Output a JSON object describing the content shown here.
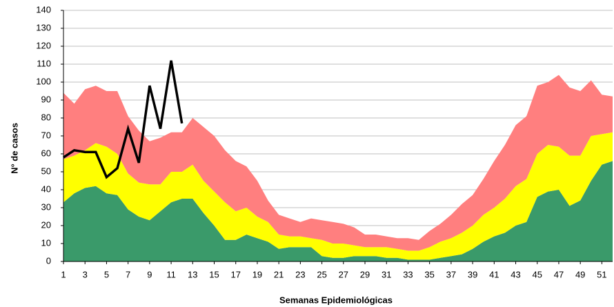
{
  "chart_data": {
    "type": "area",
    "stacked": true,
    "x_label": "Semanas Epidemiológicas",
    "y_label": "N° de casos",
    "x": [
      1,
      2,
      3,
      4,
      5,
      6,
      7,
      8,
      9,
      10,
      11,
      12,
      13,
      14,
      15,
      16,
      17,
      18,
      19,
      20,
      21,
      22,
      23,
      24,
      25,
      26,
      27,
      28,
      29,
      30,
      31,
      32,
      33,
      34,
      35,
      36,
      37,
      38,
      39,
      40,
      41,
      42,
      43,
      44,
      45,
      46,
      47,
      48,
      49,
      50,
      51,
      52
    ],
    "xlim": [
      1,
      52
    ],
    "xticks": [
      1,
      3,
      5,
      7,
      9,
      11,
      13,
      15,
      17,
      19,
      21,
      23,
      25,
      27,
      29,
      31,
      33,
      35,
      37,
      39,
      41,
      43,
      45,
      47,
      49,
      51
    ],
    "ylim": [
      0,
      140
    ],
    "yticks": [
      0,
      10,
      20,
      30,
      40,
      50,
      60,
      70,
      80,
      90,
      100,
      110,
      120,
      130,
      140
    ],
    "grid": true,
    "series": [
      {
        "type": "area",
        "color": "#3a9a6a",
        "values": [
          33,
          38,
          41,
          42,
          38,
          37,
          29,
          25,
          23,
          28,
          33,
          35,
          35,
          27,
          20,
          12,
          12,
          15,
          13,
          11,
          7,
          8,
          8,
          8,
          3,
          2,
          2,
          3,
          3,
          3,
          2,
          2,
          1,
          1,
          1,
          2,
          3,
          4,
          7,
          11,
          14,
          16,
          20,
          22,
          36,
          39,
          40,
          31,
          34,
          45,
          54,
          56
        ]
      },
      {
        "type": "area",
        "color": "#ffff00",
        "values": [
          24,
          21,
          21,
          24,
          26,
          23,
          20,
          19,
          20,
          15,
          17,
          15,
          19,
          18,
          19,
          21,
          16,
          15,
          12,
          11,
          8,
          6,
          6,
          5,
          9,
          8,
          8,
          6,
          5,
          5,
          6,
          5,
          5,
          5,
          7,
          9,
          10,
          12,
          13,
          15,
          16,
          19,
          22,
          24,
          24,
          26,
          24,
          28,
          25,
          25,
          17,
          16
        ]
      },
      {
        "type": "area",
        "color": "#ff7f7f",
        "values": [
          37,
          29,
          34,
          32,
          31,
          35,
          32,
          29,
          24,
          26,
          22,
          22,
          26,
          30,
          31,
          29,
          28,
          23,
          20,
          12,
          11,
          10,
          8,
          11,
          11,
          12,
          11,
          10,
          7,
          7,
          6,
          6,
          7,
          6,
          9,
          10,
          13,
          16,
          17,
          20,
          26,
          30,
          34,
          35,
          38,
          35,
          40,
          38,
          36,
          31,
          22,
          20
        ]
      },
      {
        "type": "line",
        "color": "#000000",
        "values": [
          58,
          62,
          61,
          61,
          47,
          52,
          74,
          55,
          98,
          74,
          112,
          77,
          null,
          null,
          null,
          null,
          null,
          null,
          null,
          null,
          null,
          null,
          null,
          null,
          null,
          null,
          null,
          null,
          null,
          null,
          null,
          null,
          null,
          null,
          null,
          null,
          null,
          null,
          null,
          null,
          null,
          null,
          null,
          null,
          null,
          null,
          null,
          null,
          null,
          null,
          null,
          null
        ]
      }
    ]
  }
}
